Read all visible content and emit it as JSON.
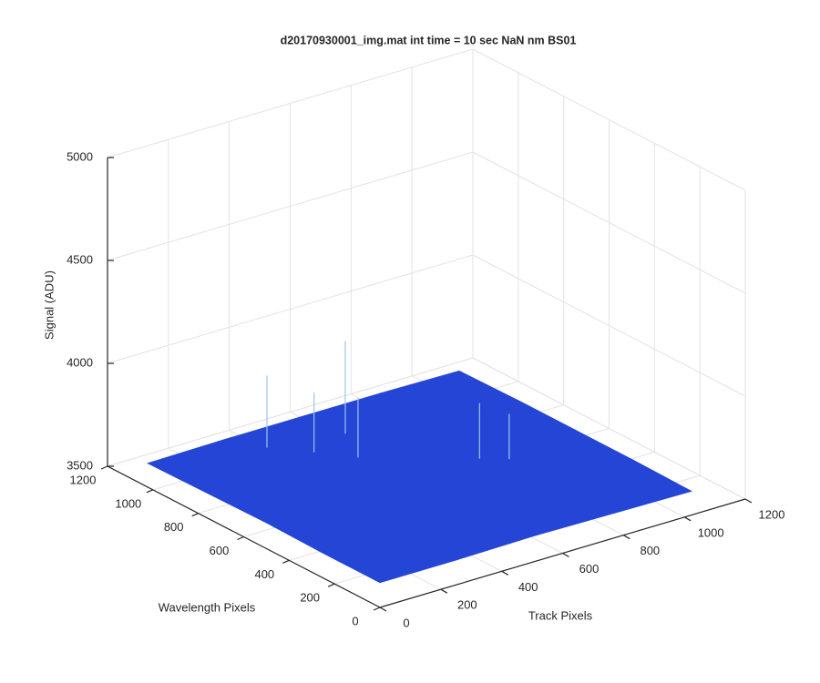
{
  "chart_data": {
    "type": "surface",
    "title": "d20170930001_img.mat int time = 10 sec  NaN nm BS01",
    "x_label": "Track Pixels",
    "y_label": "Wavelength Pixels",
    "z_label": "Signal (ADU)",
    "x": [
      0,
      256,
      512,
      768,
      1024
    ],
    "y": [
      0,
      256,
      512,
      768,
      1024
    ],
    "z": [
      [
        3620,
        3620,
        3625,
        3620,
        3615
      ],
      [
        3620,
        3625,
        3625,
        3620,
        3620
      ],
      [
        3625,
        3625,
        3630,
        3625,
        3620
      ],
      [
        3620,
        3625,
        3625,
        3625,
        3620
      ],
      [
        3615,
        3620,
        3620,
        3620,
        3615
      ]
    ],
    "peaks": [
      {
        "x": 300,
        "y": 900,
        "z": 3980
      },
      {
        "x": 380,
        "y": 800,
        "z": 3920
      },
      {
        "x": 520,
        "y": 850,
        "z": 4080
      },
      {
        "x": 700,
        "y": 500,
        "z": 3900
      },
      {
        "x": 760,
        "y": 450,
        "z": 3850
      },
      {
        "x": 450,
        "y": 700,
        "z": 3920
      }
    ],
    "color": "#2545d6",
    "peak_color": "#9cc4e8",
    "xlim": [
      0,
      1200
    ],
    "ylim": [
      0,
      1200
    ],
    "zlim": [
      3500,
      5000
    ],
    "xticks": [
      0,
      200,
      400,
      600,
      800,
      1000,
      1200
    ],
    "yticks": [
      0,
      200,
      400,
      600,
      800,
      1000,
      1200
    ],
    "zticks": [
      3500,
      4000,
      4500,
      5000
    ],
    "grid": true
  }
}
